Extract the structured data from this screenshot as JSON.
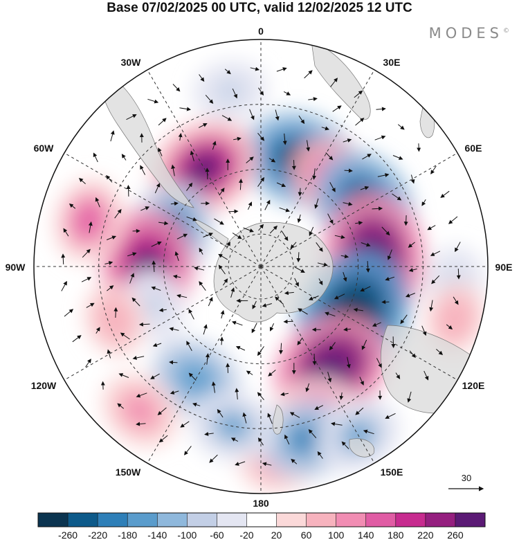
{
  "title": "Base 07/02/2025 00 UTC, valid 12/02/2025 12 UTC",
  "brand": "MODES",
  "brand_mark": "©",
  "longitude_labels": {
    "n": "0",
    "s": "180",
    "e90": "90E",
    "w90": "90W",
    "e30": "30E",
    "w30": "30W",
    "e60": "60E",
    "w60": "60W",
    "e120": "120E",
    "w120": "120W",
    "e150": "150E",
    "w150": "150W"
  },
  "wind_reference": {
    "value": "30"
  },
  "colorbar": {
    "colors": [
      "#0b3450",
      "#0d5a8a",
      "#2e7fb8",
      "#5a9ccc",
      "#8fb8dc",
      "#c3cfe6",
      "#e4e6f2",
      "#ffffff",
      "#fbd9d9",
      "#f7b3be",
      "#f18db3",
      "#e05ca4",
      "#c72b8f",
      "#951f7f",
      "#5b1a75"
    ],
    "labels": [
      "-260",
      "-220",
      "-180",
      "-140",
      "-100",
      "-60",
      "-20",
      "20",
      "60",
      "100",
      "140",
      "180",
      "220",
      "260"
    ]
  },
  "anomaly_cells": [
    {
      "lon": 20,
      "lat": -55,
      "v": -200
    },
    {
      "lon": 40,
      "lat": -55,
      "v": 120
    },
    {
      "lon": 60,
      "lat": -53,
      "v": -200
    },
    {
      "lon": 85,
      "lat": -55,
      "v": 240
    },
    {
      "lon": 118,
      "lat": -58,
      "v": -260
    },
    {
      "lon": 145,
      "lat": -52,
      "v": 220
    },
    {
      "lon": 160,
      "lat": -42,
      "v": 100
    },
    {
      "lon": 175,
      "lat": -30,
      "v": 80
    },
    {
      "lon": 165,
      "lat": -35,
      "v": -140
    },
    {
      "lon": 150,
      "lat": -30,
      "v": -100
    },
    {
      "lon": -30,
      "lat": -55,
      "v": 180
    },
    {
      "lon": -70,
      "lat": -60,
      "v": -160
    },
    {
      "lon": -90,
      "lat": -55,
      "v": 200
    },
    {
      "lon": -110,
      "lat": -55,
      "v": -60
    },
    {
      "lon": -110,
      "lat": -42,
      "v": 60
    },
    {
      "lon": -150,
      "lat": -50,
      "v": -120
    },
    {
      "lon": -170,
      "lat": -40,
      "v": -100
    },
    {
      "lon": -140,
      "lat": -32,
      "v": 90
    },
    {
      "lon": -75,
      "lat": -35,
      "v": 100
    },
    {
      "lon": -10,
      "lat": -35,
      "v": -60
    },
    {
      "lon": 95,
      "lat": -30,
      "v": -60
    },
    {
      "lon": 105,
      "lat": -28,
      "v": 60
    }
  ]
}
